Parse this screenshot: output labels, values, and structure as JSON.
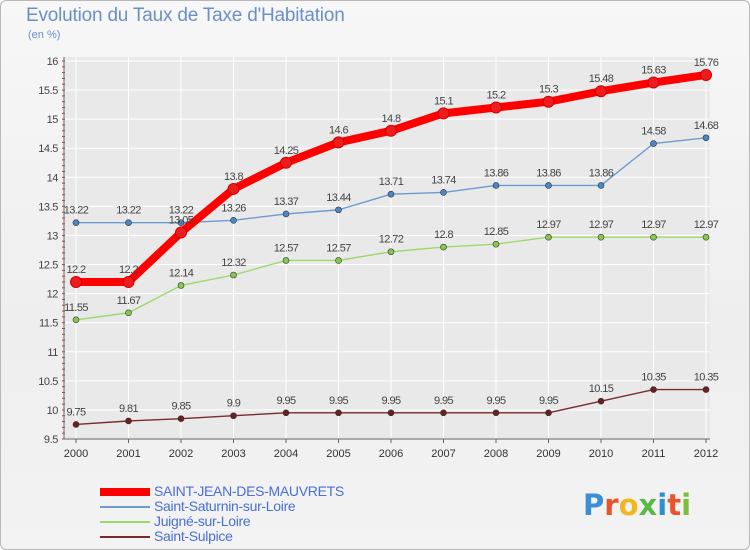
{
  "title": "Evolution du Taux de Taxe d'Habitation",
  "unit": "(en %)",
  "logo": {
    "letters": [
      "P",
      "r",
      "o",
      "x",
      "i",
      "t",
      "i"
    ],
    "colors": [
      "#3a8fd8",
      "#e8552b",
      "#f0b722",
      "#5db84b",
      "#2f8fd0",
      "#e8552b",
      "#7bbd3d"
    ]
  },
  "colors": {
    "axis": "#666666",
    "grid": "#ffffff",
    "tick_marks": "#cc3333"
  },
  "chart_data": {
    "type": "line",
    "categories": [
      "2000",
      "2001",
      "2002",
      "2003",
      "2004",
      "2005",
      "2006",
      "2007",
      "2008",
      "2009",
      "2010",
      "2011",
      "2012"
    ],
    "ylim": [
      9.5,
      16
    ],
    "yticks": [
      "9.5",
      "10",
      "10.5",
      "11",
      "11.5",
      "12",
      "12.5",
      "13",
      "13.5",
      "14",
      "14.5",
      "15",
      "15.5",
      "16"
    ],
    "grid": true,
    "legend_position": "bottom-left",
    "series": [
      {
        "name": "SAINT-JEAN-DES-MAUVRETS",
        "color": "#ff0000",
        "marker_color": "#ee1c1c",
        "bold": true,
        "values": [
          12.2,
          12.2,
          13.05,
          13.8,
          14.25,
          14.6,
          14.8,
          15.1,
          15.2,
          15.3,
          15.48,
          15.63,
          15.76
        ],
        "labels": [
          "12.2",
          "12.2",
          "13.05",
          "13.8",
          "14.25",
          "14.6",
          "14.8",
          "15.1",
          "15.2",
          "15.3",
          "15.48",
          "15.63",
          "15.76"
        ]
      },
      {
        "name": "Saint-Saturnin-sur-Loire",
        "color": "#6b9bd1",
        "marker_color": "#4a86c8",
        "bold": false,
        "values": [
          13.22,
          13.22,
          13.22,
          13.26,
          13.37,
          13.44,
          13.71,
          13.74,
          13.86,
          13.86,
          13.86,
          14.58,
          14.68
        ],
        "labels": [
          "13.22",
          "13.22",
          "13.22",
          "13.26",
          "13.37",
          "13.44",
          "13.71",
          "13.74",
          "13.86",
          "13.86",
          "13.86",
          "14.58",
          "14.68"
        ]
      },
      {
        "name": "Juigné-sur-Loire",
        "color": "#9ed86a",
        "marker_color": "#86c84e",
        "bold": false,
        "values": [
          11.55,
          11.67,
          12.14,
          12.32,
          12.57,
          12.57,
          12.72,
          12.8,
          12.85,
          12.97,
          12.97,
          12.97,
          12.97
        ],
        "labels": [
          "11.55",
          "11.67",
          "12.14",
          "12.32",
          "12.57",
          "12.57",
          "12.72",
          "12.8",
          "12.85",
          "12.97",
          "12.97",
          "12.97",
          "12.97"
        ]
      },
      {
        "name": "Saint-Sulpice",
        "color": "#7a2a2a",
        "marker_color": "#6b1f1f",
        "bold": false,
        "values": [
          9.75,
          9.81,
          9.85,
          9.9,
          9.95,
          9.95,
          9.95,
          9.95,
          9.95,
          9.95,
          10.15,
          10.35,
          10.35
        ],
        "labels": [
          "9.75",
          "9.81",
          "9.85",
          "9.9",
          "9.95",
          "9.95",
          "9.95",
          "9.95",
          "9.95",
          "9.95",
          "10.15",
          "10.35",
          "10.35"
        ]
      }
    ]
  }
}
